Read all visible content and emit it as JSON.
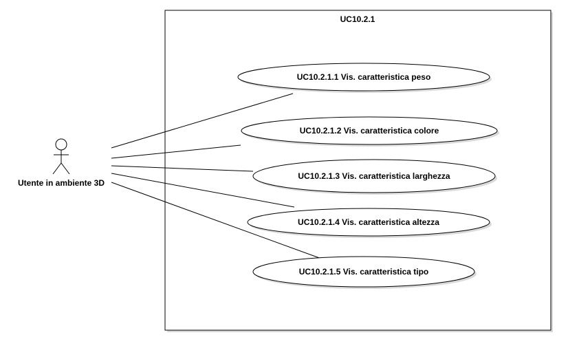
{
  "diagram": {
    "system_title": "UC10.2.1",
    "actor": {
      "label": "Utente in ambiente 3D",
      "icon": "stick-figure-icon"
    },
    "use_cases": [
      {
        "id": "uc1",
        "label": "UC10.2.1.1 Vis. caratteristica peso"
      },
      {
        "id": "uc2",
        "label": "UC10.2.1.2 Vis. caratteristica colore"
      },
      {
        "id": "uc3",
        "label": "UC10.2.1.3 Vis. caratteristica larghezza"
      },
      {
        "id": "uc4",
        "label": "UC10.2.1.4 Vis. caratteristica altezza"
      },
      {
        "id": "uc5",
        "label": "UC10.2.1.5 Vis. caratteristica tipo"
      }
    ],
    "associations": [
      {
        "from": "actor",
        "to": "uc1"
      },
      {
        "from": "actor",
        "to": "uc2"
      },
      {
        "from": "actor",
        "to": "uc3"
      },
      {
        "from": "actor",
        "to": "uc4"
      },
      {
        "from": "actor",
        "to": "uc5"
      }
    ],
    "colors": {
      "stroke": "#000000",
      "fill": "#ffffff",
      "shadow": "#d9d9d9"
    }
  }
}
